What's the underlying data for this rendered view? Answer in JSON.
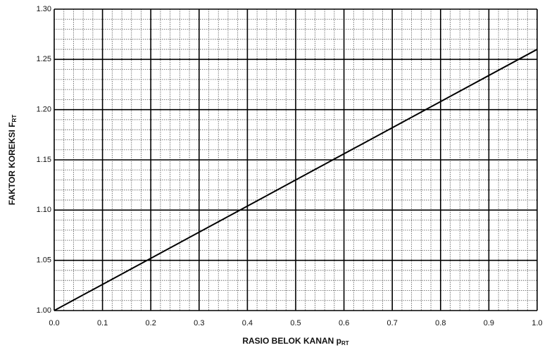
{
  "chart_data": {
    "type": "line",
    "x_label": "RASIO BELOK KANAN p",
    "x_label_sub": "RT",
    "y_label": "FAKTOR KOREKSI F",
    "y_label_sub": "RT",
    "x": [
      0.0,
      1.0
    ],
    "series": [
      {
        "color": "#000000",
        "values": [
          1.0,
          1.26
        ]
      }
    ],
    "xlim": [
      0.0,
      1.0
    ],
    "xticks": [
      {
        "value": 0.0,
        "label": "0.0"
      },
      0.1,
      0.2,
      0.3,
      0.4,
      0.5,
      0.6,
      0.7,
      0.8,
      0.9,
      {
        "value": 1.0,
        "label": "1.0"
      }
    ],
    "ylim": [
      1.0,
      1.3
    ],
    "yticks": [
      {
        "value": 1.0,
        "label": "1.00"
      },
      1.05,
      {
        "value": 1.1,
        "label": "1.10"
      },
      1.15,
      {
        "value": 1.2,
        "label": "1.20"
      },
      1.25,
      {
        "value": 1.3,
        "label": "1.30"
      }
    ],
    "grid": true,
    "minor_grid_divisions": 5
  }
}
